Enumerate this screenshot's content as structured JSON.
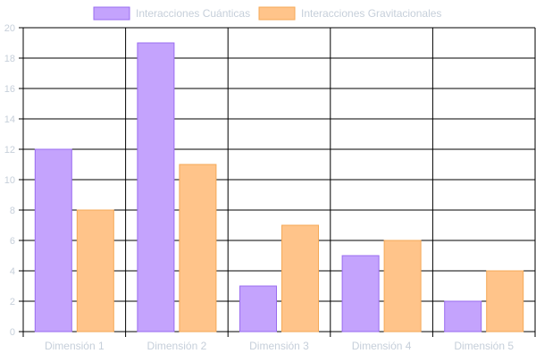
{
  "chart_data": {
    "type": "bar",
    "title": "",
    "xlabel": "",
    "ylabel": "",
    "categories": [
      "Dimensión 1",
      "Dimensión 2",
      "Dimensión 3",
      "Dimensión 4",
      "Dimensión 5"
    ],
    "series": [
      {
        "name": "Interacciones Cuánticas",
        "values": [
          12,
          19,
          3,
          5,
          2
        ],
        "fill": "#c4a3fd",
        "stroke": "#9a6cf0"
      },
      {
        "name": "Interacciones Gravitacionales",
        "values": [
          8,
          11,
          7,
          6,
          4
        ],
        "fill": "#ffc48a",
        "stroke": "#f5a957"
      }
    ],
    "ylim": [
      0,
      20
    ],
    "yticks": [
      0,
      2,
      4,
      6,
      8,
      10,
      12,
      14,
      16,
      18,
      20
    ],
    "grid": true,
    "legend_position": "top",
    "colors": {
      "grid": "#000000",
      "tick_label": "#c6cfda"
    }
  }
}
